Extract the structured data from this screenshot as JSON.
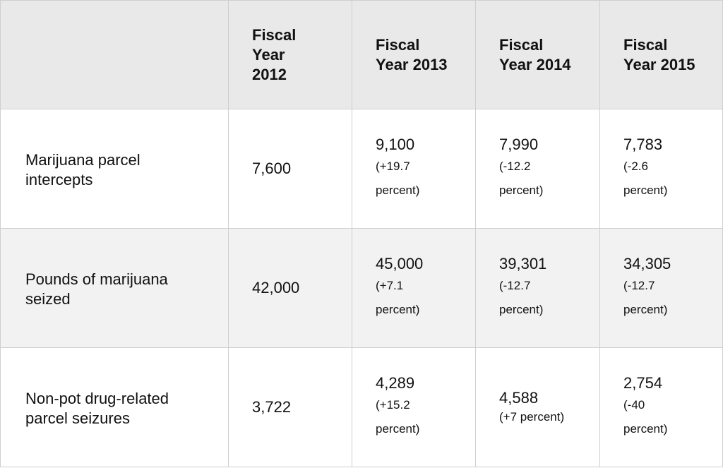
{
  "table": {
    "headers": [
      "",
      "Fiscal Year 2012",
      "Fiscal Year 2013",
      "Fiscal Year 2014",
      "Fiscal Year 2015"
    ],
    "header_lines": [
      [],
      [
        "Fiscal",
        "Year",
        "2012"
      ],
      [
        "Fiscal",
        "Year 2013"
      ],
      [
        "Fiscal",
        "Year 2014"
      ],
      [
        "Fiscal",
        "Year 2015"
      ]
    ],
    "rows": [
      {
        "label": "Marijuana parcel intercepts",
        "label_lines": [
          "Marijuana parcel",
          "intercepts"
        ],
        "fy2012": "7,600",
        "fy2013": {
          "value": "9,100",
          "change_lines": [
            "(+19.7",
            "percent)"
          ]
        },
        "fy2014": {
          "value": "7,990",
          "change_lines": [
            "(-12.2",
            "percent)"
          ]
        },
        "fy2015": {
          "value": "7,783",
          "change_lines": [
            "(-2.6",
            "percent)"
          ]
        }
      },
      {
        "label": "Pounds of marijuana seized",
        "label_lines": [
          "Pounds of marijuana",
          "seized"
        ],
        "fy2012": "42,000",
        "fy2013": {
          "value": "45,000",
          "change_lines": [
            "(+7.1",
            "percent)"
          ]
        },
        "fy2014": {
          "value": "39,301",
          "change_lines": [
            "(-12.7",
            "percent)"
          ]
        },
        "fy2015": {
          "value": "34,305",
          "change_lines": [
            "(-12.7",
            "percent)"
          ]
        }
      },
      {
        "label": "Non-pot drug-related parcel seizures",
        "label_lines": [
          "Non-pot drug-related",
          "parcel seizures"
        ],
        "fy2012": "3,722",
        "fy2013": {
          "value": "4,289",
          "change_lines": [
            "(+15.2",
            "percent)"
          ]
        },
        "fy2014": {
          "value": "4,588",
          "change_lines": [
            "(+7 percent)"
          ]
        },
        "fy2015": {
          "value": "2,754",
          "change_lines": [
            "(-40",
            "percent)"
          ]
        }
      }
    ],
    "colors": {
      "header_bg": "#e9e9e9",
      "shaded_row_bg": "#f2f2f2",
      "border": "#cfcfcf"
    }
  }
}
